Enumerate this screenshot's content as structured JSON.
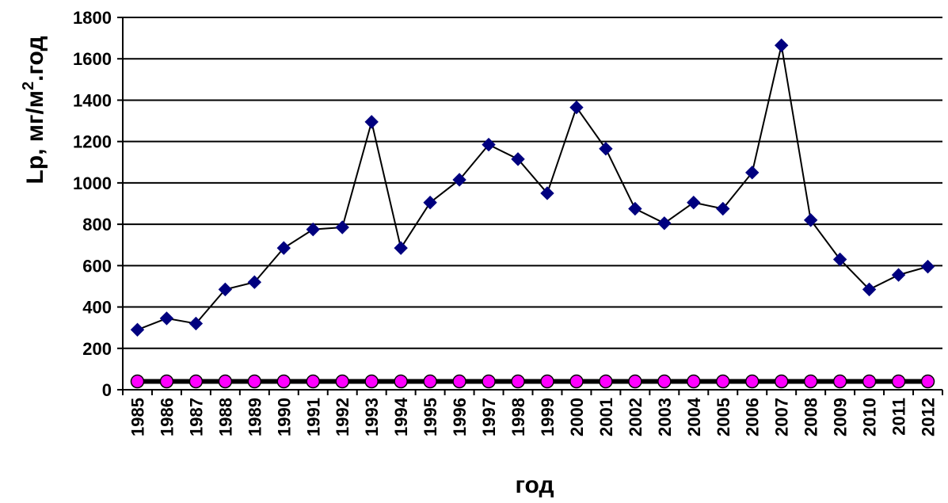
{
  "chart_data": {
    "type": "line",
    "title": "",
    "xlabel": "год",
    "ylabel": {
      "main": "Lp, мг/м",
      "sup": "2",
      "tail": ".год"
    },
    "ylim": [
      0,
      1800
    ],
    "yticks": [
      "0",
      "200",
      "400",
      "600",
      "800",
      "1000",
      "1200",
      "1400",
      "1600",
      "1800"
    ],
    "categories": [
      "1985",
      "1986",
      "1987",
      "1988",
      "1989",
      "1990",
      "1991",
      "1992",
      "1993",
      "1994",
      "1995",
      "1996",
      "1997",
      "1998",
      "1999",
      "2000",
      "2001",
      "2002",
      "2003",
      "2004",
      "2005",
      "2006",
      "2007",
      "2008",
      "2009",
      "2010",
      "2011",
      "2012"
    ],
    "grid": true,
    "legend": "none",
    "series": [
      {
        "marker": "diamond",
        "color": "#00007F",
        "line_color": "#000000",
        "values": [
          290,
          345,
          320,
          485,
          520,
          685,
          775,
          785,
          1295,
          685,
          905,
          1015,
          1185,
          1115,
          950,
          1365,
          1165,
          875,
          805,
          905,
          875,
          1050,
          1665,
          820,
          630,
          485,
          555,
          595
        ]
      },
      {
        "marker": "circle",
        "color": "#FF00FF",
        "line_color": "#000000",
        "values": [
          40,
          40,
          40,
          40,
          40,
          40,
          40,
          40,
          40,
          40,
          40,
          40,
          40,
          40,
          40,
          40,
          40,
          40,
          40,
          40,
          40,
          40,
          40,
          40,
          40,
          40,
          40,
          40
        ]
      }
    ]
  }
}
